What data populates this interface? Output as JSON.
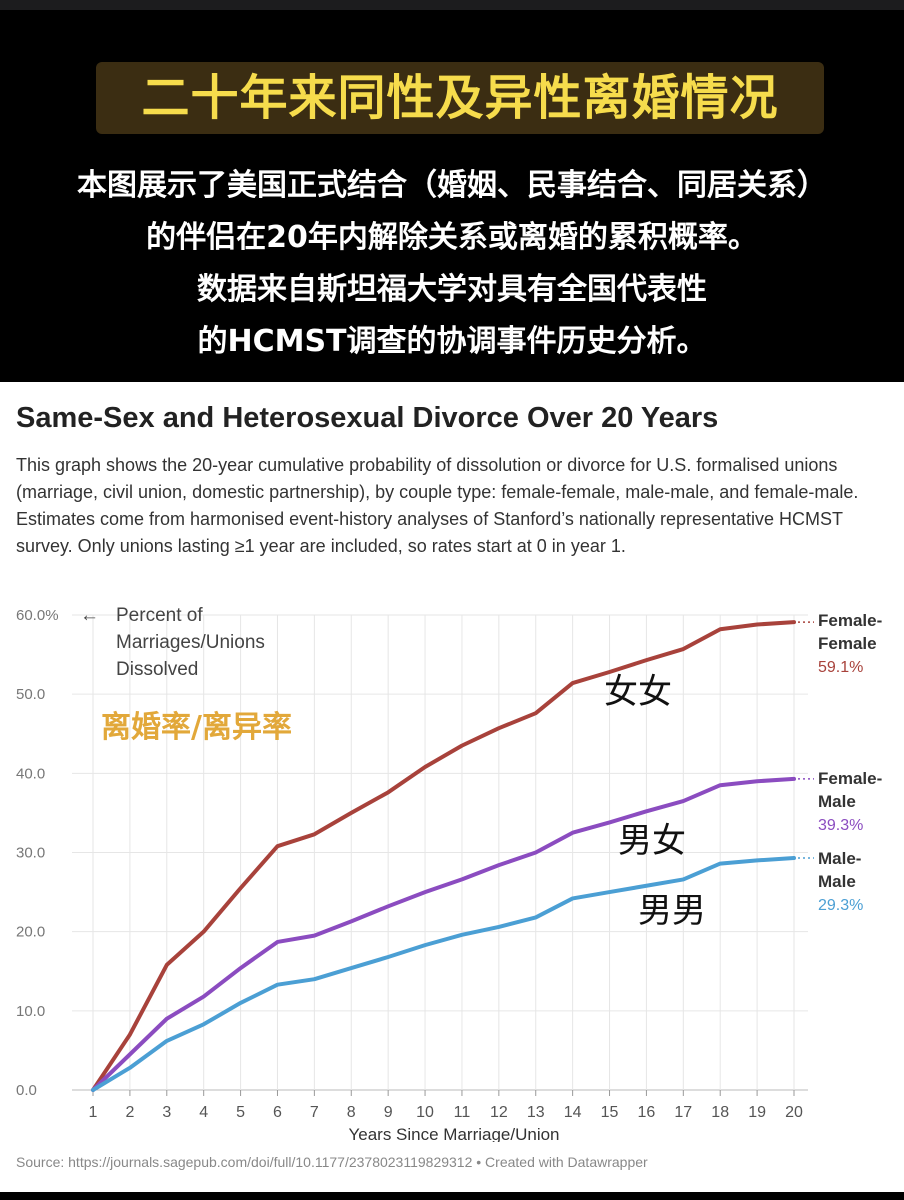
{
  "banner": {
    "title": "二十年来同性及异性离婚情况",
    "lines": [
      "本图展示了美国正式结合（婚姻、民事结合、同居关系）",
      "的伴侣在20年内解除关系或离婚的累积概率。",
      "数据来自斯坦福大学对具有全国代表性",
      "的HCMST调查的协调事件历史分析。"
    ]
  },
  "card": {
    "title": "Same-Sex and Heterosexual Divorce Over 20 Years",
    "description": "This graph shows the 20-year cumulative probability of dissolution or divorce for U.S. formalised unions (marriage, civil union, domestic partnership), by couple type: female-female, male-male, and female-male. Estimates come from harmonised event-history analyses of Stanford’s nationally representative HCMST survey. Only unions lasting ≥1 year are included, so rates start at 0 in year 1.",
    "source": "Source: https://journals.sagepub.com/doi/full/10.1177/2378023119829312 • Created with Datawrapper"
  },
  "colors": {
    "banner_bg": "#3b2d12",
    "banner_text": "#f6dc4c",
    "overlay_label": "#e2a83a",
    "female_female": "#a8423b",
    "female_male": "#8b4cc0",
    "male_male": "#4b9fd4",
    "grid": "#e6e6e6",
    "axis_text": "#777777"
  },
  "annotations": {
    "axis_note_arrow": "←",
    "axis_note_lines": [
      "Percent of",
      "Marriages/Unions",
      "Dissolved"
    ],
    "overlay_label": "离婚率/离异率",
    "series_tags": [
      "女女",
      "男女",
      "男男"
    ]
  },
  "chart_data": {
    "type": "line",
    "title": "Same-Sex and Heterosexual Divorce Over 20 Years",
    "xlabel": "Years Since Marriage/Union",
    "ylabel": "Percent of Marriages/Unions Dissolved",
    "x": [
      1,
      2,
      3,
      4,
      5,
      6,
      7,
      8,
      9,
      10,
      11,
      12,
      13,
      14,
      15,
      16,
      17,
      18,
      19,
      20
    ],
    "xlim": [
      1,
      20
    ],
    "ylim": [
      0,
      60
    ],
    "y_ticks": [
      "0.0",
      "10.0",
      "20.0",
      "30.0",
      "40.0",
      "50.0",
      "60.0%"
    ],
    "x_ticks": [
      "1",
      "2",
      "3",
      "4",
      "5",
      "6",
      "7",
      "8",
      "9",
      "10",
      "11",
      "12",
      "13",
      "14",
      "15",
      "16",
      "17",
      "18",
      "19",
      "20"
    ],
    "grid": true,
    "legend": "inline-right",
    "series": [
      {
        "name": "Female-Female",
        "label_lines": [
          "Female-",
          "Female"
        ],
        "end_label": "59.1%",
        "color": "#a8423b",
        "values": [
          0,
          7,
          15.8,
          20,
          25.5,
          30.8,
          32.3,
          35,
          37.6,
          40.8,
          43.5,
          45.7,
          47.6,
          51.4,
          52.8,
          54.3,
          55.7,
          58.2,
          58.8,
          59.1
        ]
      },
      {
        "name": "Female-Male",
        "label_lines": [
          "Female-",
          "Male"
        ],
        "end_label": "39.3%",
        "color": "#8b4cc0",
        "values": [
          0,
          4.5,
          9.0,
          11.8,
          15.4,
          18.7,
          19.5,
          21.3,
          23.2,
          25.0,
          26.6,
          28.4,
          30.0,
          32.5,
          33.8,
          35.2,
          36.5,
          38.5,
          39.0,
          39.3
        ]
      },
      {
        "name": "Male-Male",
        "label_lines": [
          "Male-",
          "Male"
        ],
        "end_label": "29.3%",
        "color": "#4b9fd4",
        "values": [
          0,
          2.8,
          6.2,
          8.3,
          11.0,
          13.3,
          14.0,
          15.4,
          16.8,
          18.3,
          19.6,
          20.6,
          21.8,
          24.2,
          25.0,
          25.8,
          26.6,
          28.6,
          29.0,
          29.3
        ]
      }
    ]
  }
}
